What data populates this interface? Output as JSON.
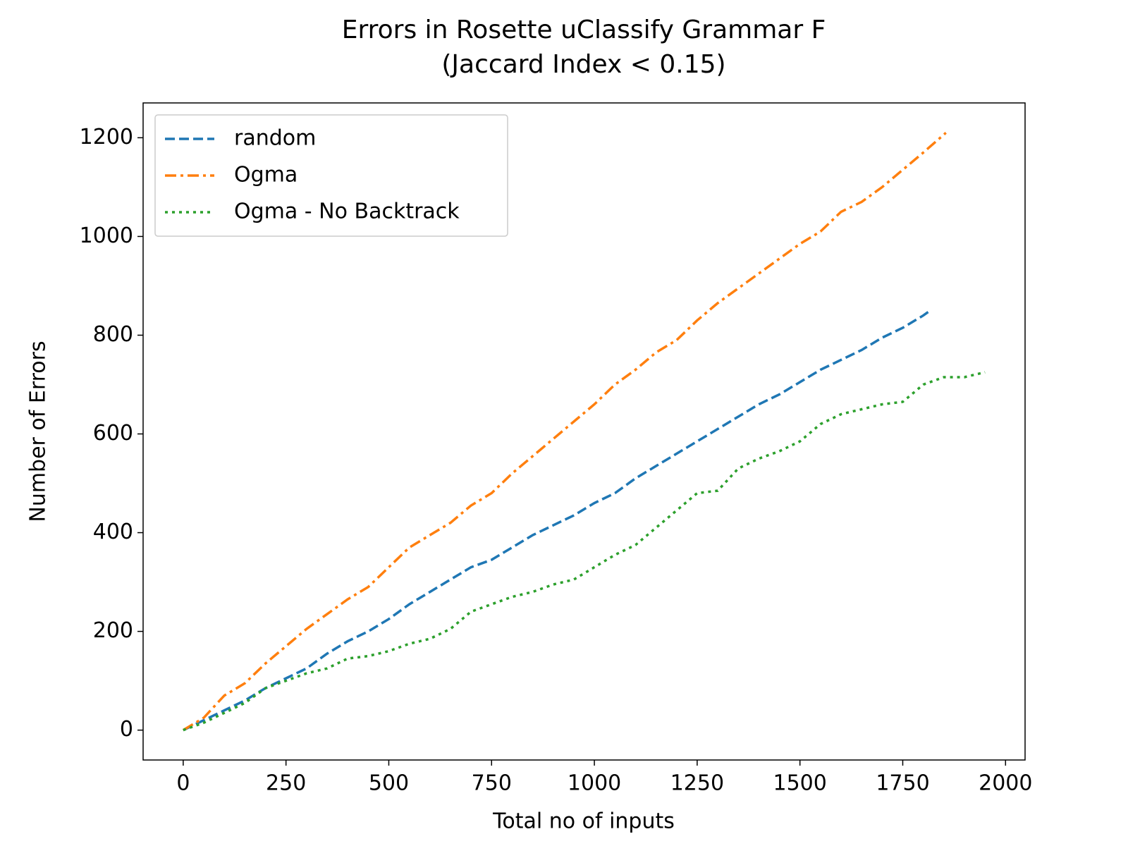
{
  "chart_data": {
    "type": "line",
    "title": "Errors in Rosette uClassify Grammar F",
    "subtitle": "(Jaccard Index < 0.15)",
    "x_label": "Total no of inputs",
    "y_label": "Number of Errors",
    "xlim": [
      -97.5,
      2047.5
    ],
    "ylim": [
      -60.5,
      1270.5
    ],
    "xticks": [
      0,
      250,
      500,
      750,
      1000,
      1250,
      1500,
      1750,
      2000
    ],
    "yticks": [
      0,
      200,
      400,
      600,
      800,
      1000,
      1200
    ],
    "grid": false,
    "legend": "upper left",
    "series": [
      {
        "name": "random",
        "color": "#1f77b4",
        "dash": "dashed",
        "x": [
          0,
          50,
          100,
          150,
          200,
          250,
          300,
          350,
          400,
          450,
          500,
          550,
          600,
          650,
          700,
          750,
          800,
          850,
          900,
          950,
          1000,
          1050,
          1100,
          1150,
          1200,
          1250,
          1300,
          1350,
          1400,
          1450,
          1500,
          1550,
          1600,
          1650,
          1700,
          1750,
          1800,
          1820
        ],
        "values": [
          0,
          20,
          40,
          60,
          85,
          105,
          125,
          155,
          180,
          200,
          225,
          255,
          280,
          305,
          330,
          345,
          370,
          395,
          415,
          435,
          460,
          480,
          510,
          535,
          560,
          585,
          610,
          635,
          660,
          680,
          705,
          730,
          750,
          770,
          795,
          815,
          840,
          852
        ]
      },
      {
        "name": "Ogma",
        "color": "#ff7f0e",
        "dash": "dashdot",
        "x": [
          0,
          50,
          100,
          150,
          200,
          250,
          300,
          350,
          400,
          450,
          500,
          550,
          600,
          650,
          700,
          750,
          800,
          850,
          900,
          950,
          1000,
          1050,
          1100,
          1150,
          1200,
          1250,
          1300,
          1350,
          1400,
          1450,
          1500,
          1550,
          1600,
          1650,
          1700,
          1750,
          1800,
          1855
        ],
        "values": [
          0,
          25,
          70,
          95,
          135,
          170,
          205,
          235,
          265,
          290,
          330,
          370,
          395,
          420,
          455,
          480,
          520,
          555,
          590,
          625,
          660,
          700,
          730,
          765,
          790,
          830,
          865,
          895,
          925,
          955,
          985,
          1010,
          1050,
          1070,
          1100,
          1135,
          1170,
          1210
        ]
      },
      {
        "name": "Ogma - No Backtrack",
        "color": "#2ca02c",
        "dash": "dotted",
        "x": [
          0,
          50,
          100,
          150,
          200,
          250,
          300,
          350,
          400,
          450,
          500,
          550,
          600,
          650,
          700,
          750,
          800,
          850,
          900,
          950,
          1000,
          1050,
          1100,
          1150,
          1200,
          1250,
          1300,
          1350,
          1400,
          1450,
          1500,
          1550,
          1600,
          1650,
          1700,
          1750,
          1800,
          1850,
          1900,
          1950
        ],
        "values": [
          0,
          15,
          35,
          55,
          85,
          100,
          115,
          125,
          145,
          150,
          160,
          175,
          185,
          205,
          240,
          255,
          270,
          280,
          295,
          305,
          330,
          355,
          375,
          410,
          445,
          480,
          485,
          530,
          550,
          565,
          585,
          620,
          640,
          650,
          660,
          665,
          700,
          715,
          715,
          725
        ]
      }
    ]
  }
}
